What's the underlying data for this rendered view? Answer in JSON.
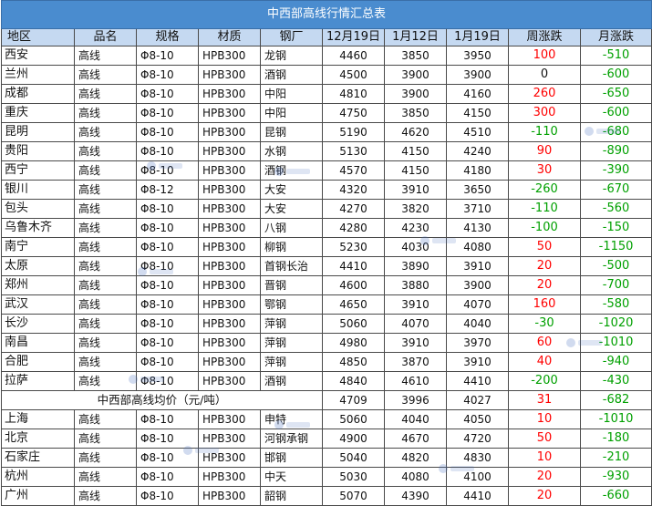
{
  "title": "中西部高线行情汇总表",
  "headers": [
    "地区",
    "品名",
    "规格",
    "材质",
    "钢厂",
    "12月19日",
    "1月12日",
    "1月19日",
    "周涨跌",
    "月涨跌"
  ],
  "rows_group1": [
    {
      "region": "西安",
      "name": "高线",
      "spec": "Φ8-10",
      "material": "HPB300",
      "mill": "龙钢",
      "p1": "4460",
      "p2": "3850",
      "p3": "3950",
      "wk": "100",
      "mo": "-510"
    },
    {
      "region": "兰州",
      "name": "高线",
      "spec": "Φ8-10",
      "material": "HPB300",
      "mill": "酒钢",
      "p1": "4500",
      "p2": "3900",
      "p3": "3900",
      "wk": "0",
      "mo": "-600"
    },
    {
      "region": "成都",
      "name": "高线",
      "spec": "Φ8-10",
      "material": "HPB300",
      "mill": "中阳",
      "p1": "4810",
      "p2": "3900",
      "p3": "4160",
      "wk": "260",
      "mo": "-650"
    },
    {
      "region": "重庆",
      "name": "高线",
      "spec": "Φ8-10",
      "material": "HPB300",
      "mill": "中阳",
      "p1": "4750",
      "p2": "3850",
      "p3": "4150",
      "wk": "300",
      "mo": "-600"
    },
    {
      "region": "昆明",
      "name": "高线",
      "spec": "Φ8-10",
      "material": "HPB300",
      "mill": "昆钢",
      "p1": "5190",
      "p2": "4620",
      "p3": "4510",
      "wk": "-110",
      "mo": "-680"
    },
    {
      "region": "贵阳",
      "name": "高线",
      "spec": "Φ8-10",
      "material": "HPB300",
      "mill": "水钢",
      "p1": "5130",
      "p2": "4150",
      "p3": "4240",
      "wk": "90",
      "mo": "-890"
    },
    {
      "region": "西宁",
      "name": "高线",
      "spec": "Φ8-10",
      "material": "HPB300",
      "mill": "酒钢",
      "p1": "4570",
      "p2": "4150",
      "p3": "4180",
      "wk": "30",
      "mo": "-390"
    },
    {
      "region": "银川",
      "name": "高线",
      "spec": "Φ8-12",
      "material": "HPB300",
      "mill": "大安",
      "p1": "4320",
      "p2": "3910",
      "p3": "3650",
      "wk": "-260",
      "mo": "-670"
    },
    {
      "region": "包头",
      "name": "高线",
      "spec": "Φ8-10",
      "material": "HPB300",
      "mill": "大安",
      "p1": "4270",
      "p2": "3820",
      "p3": "3710",
      "wk": "-110",
      "mo": "-560"
    },
    {
      "region": "乌鲁木齐",
      "name": "高线",
      "spec": "Φ8-10",
      "material": "HPB300",
      "mill": "八钢",
      "p1": "4280",
      "p2": "4230",
      "p3": "4130",
      "wk": "-100",
      "mo": "-150"
    },
    {
      "region": "南宁",
      "name": "高线",
      "spec": "Φ8-10",
      "material": "HPB300",
      "mill": "柳钢",
      "p1": "5230",
      "p2": "4030",
      "p3": "4080",
      "wk": "50",
      "mo": "-1150"
    },
    {
      "region": "太原",
      "name": "高线",
      "spec": "Φ8-10",
      "material": "HPB300",
      "mill": "首钢长治",
      "p1": "4410",
      "p2": "3890",
      "p3": "3910",
      "wk": "20",
      "mo": "-500"
    },
    {
      "region": "郑州",
      "name": "高线",
      "spec": "Φ8-10",
      "material": "HPB300",
      "mill": "晋钢",
      "p1": "4600",
      "p2": "3880",
      "p3": "3900",
      "wk": "20",
      "mo": "-700"
    },
    {
      "region": "武汉",
      "name": "高线",
      "spec": "Φ8-10",
      "material": "HPB300",
      "mill": "鄂钢",
      "p1": "4650",
      "p2": "3910",
      "p3": "4070",
      "wk": "160",
      "mo": "-580"
    },
    {
      "region": "长沙",
      "name": "高线",
      "spec": "Φ8-10",
      "material": "HPB300",
      "mill": "萍钢",
      "p1": "5060",
      "p2": "4070",
      "p3": "4040",
      "wk": "-30",
      "mo": "-1020"
    },
    {
      "region": "南昌",
      "name": "高线",
      "spec": "Φ8-10",
      "material": "HPB300",
      "mill": "萍钢",
      "p1": "4980",
      "p2": "3910",
      "p3": "3970",
      "wk": "60",
      "mo": "-1010"
    },
    {
      "region": "合肥",
      "name": "高线",
      "spec": "Φ8-10",
      "material": "HPB300",
      "mill": "萍钢",
      "p1": "4850",
      "p2": "3870",
      "p3": "3910",
      "wk": "40",
      "mo": "-940"
    },
    {
      "region": "拉萨",
      "name": "高线",
      "spec": "Φ8-10",
      "material": "HPB300",
      "mill": "酒钢",
      "p1": "4840",
      "p2": "4610",
      "p3": "4410",
      "wk": "-200",
      "mo": "-430"
    }
  ],
  "average": {
    "label": "中西部高线均价（元/吨）",
    "p1": "4709",
    "p2": "3996",
    "p3": "4027",
    "wk": "31",
    "mo": "-682"
  },
  "rows_group2": [
    {
      "region": "上海",
      "name": "高线",
      "spec": "Φ8-10",
      "material": "HPB300",
      "mill": "申特",
      "p1": "5060",
      "p2": "4040",
      "p3": "4050",
      "wk": "10",
      "mo": "-1010"
    },
    {
      "region": "北京",
      "name": "高线",
      "spec": "Φ8-10",
      "material": "HPB300",
      "mill": "河钢承钢",
      "p1": "4900",
      "p2": "4670",
      "p3": "4720",
      "wk": "50",
      "mo": "-180"
    },
    {
      "region": "石家庄",
      "name": "高线",
      "spec": "Φ8-10",
      "material": "HPB300",
      "mill": "邯钢",
      "p1": "5040",
      "p2": "4820",
      "p3": "4830",
      "wk": "10",
      "mo": "-210"
    },
    {
      "region": "杭州",
      "name": "高线",
      "spec": "Φ8-10",
      "material": "HPB300",
      "mill": "中天",
      "p1": "5030",
      "p2": "4080",
      "p3": "4100",
      "wk": "20",
      "mo": "-930"
    },
    {
      "region": "广州",
      "name": "高线",
      "spec": "Φ8-10",
      "material": "HPB300",
      "mill": "韶钢",
      "p1": "5070",
      "p2": "4390",
      "p3": "4410",
      "wk": "20",
      "mo": "-660"
    }
  ],
  "colors": {
    "title_bg": "#4a8ccf",
    "header_bg": "#c5d9f1",
    "rise": "#ff0000",
    "fall": "#00a000"
  }
}
